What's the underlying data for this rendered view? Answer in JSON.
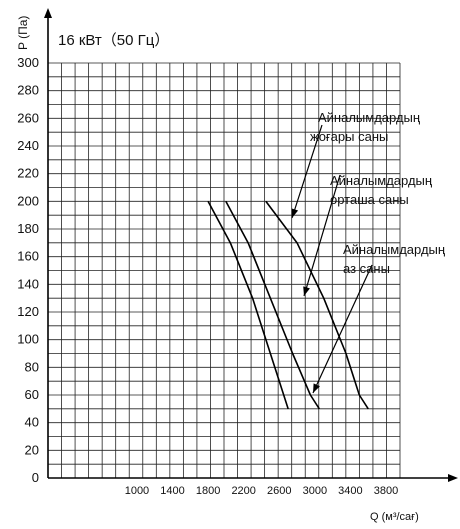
{
  "chart_data": {
    "type": "line",
    "title": "16 кВт（50 Гц）",
    "ylabel": "P (Па)",
    "xlabel": "Q (м³/сағ)",
    "ylim": [
      0,
      300
    ],
    "xlim": [
      0,
      4000
    ],
    "grid": true,
    "y_ticks": [
      "300",
      "280",
      "260",
      "240",
      "220",
      "200",
      "180",
      "160",
      "140",
      "120",
      "100",
      "80",
      "60",
      "40",
      "20",
      "0"
    ],
    "x_ticks": [
      "1000",
      "1400",
      "1800",
      "2200",
      "2600",
      "3000",
      "3400",
      "3800"
    ],
    "series": [
      {
        "name": "Айналымдардың аз саны",
        "x": [
          1800,
          2050,
          2300,
          2500,
          2650,
          2700
        ],
        "y": [
          200,
          170,
          130,
          90,
          60,
          50
        ]
      },
      {
        "name": "Айналымдардың орташа саны",
        "x": [
          2000,
          2250,
          2500,
          2750,
          2950,
          3050
        ],
        "y": [
          200,
          170,
          130,
          90,
          60,
          50
        ]
      },
      {
        "name": "Айналымдардың жоғары саны",
        "x": [
          2450,
          2800,
          3100,
          3350,
          3500,
          3600
        ],
        "y": [
          200,
          170,
          130,
          90,
          60,
          50
        ]
      }
    ],
    "annotations": [
      {
        "line1": "Айналымдардың",
        "line2": "жоғары саны"
      },
      {
        "line1": "Айналымдардың",
        "line2": "орташа саны"
      },
      {
        "line1": "Айналымдардың",
        "line2": "аз саны"
      }
    ]
  }
}
